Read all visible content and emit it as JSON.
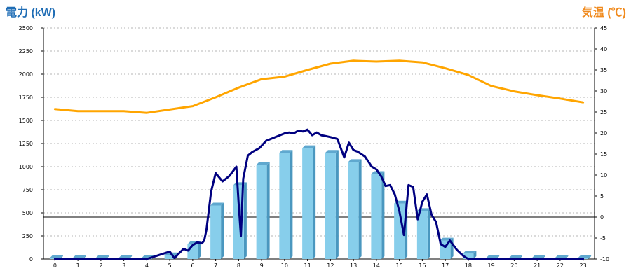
{
  "chart_data": {
    "type": "bar",
    "title": "",
    "left_axis_label": "電力 (kW)",
    "right_axis_label": "気温 (℃)",
    "categories": [
      "0",
      "1",
      "2",
      "3",
      "4",
      "5",
      "6",
      "7",
      "8",
      "9",
      "10",
      "11",
      "12",
      "13",
      "14",
      "15",
      "16",
      "17",
      "18",
      "19",
      "20",
      "21",
      "22",
      "23"
    ],
    "ylim_left": [
      0,
      2500
    ],
    "yticks_left": [
      "0",
      "250",
      "500",
      "750",
      "1000",
      "1250",
      "1500",
      "1750",
      "2000",
      "2250",
      "2500"
    ],
    "ylim_right": [
      -10,
      45
    ],
    "yticks_right": [
      "-10",
      "-5",
      "0",
      "5",
      "10",
      "15",
      "20",
      "25",
      "30",
      "35",
      "40",
      "45"
    ],
    "grid": "horizontal dashed",
    "series": [
      {
        "type": "bar",
        "axis": "left",
        "values": [
          10,
          10,
          10,
          10,
          10,
          40,
          160,
          580,
          800,
          1020,
          1150,
          1200,
          1150,
          1050,
          920,
          600,
          520,
          200,
          60,
          10,
          10,
          10,
          10,
          10
        ],
        "color": "#87ceeb"
      },
      {
        "type": "line",
        "axis": "left",
        "x": [
          0,
          1,
          2,
          3,
          4,
          4.5,
          5,
          5.2,
          5.4,
          5.6,
          5.8,
          6,
          6.2,
          6.4,
          6.5,
          6.6,
          6.8,
          7,
          7.3,
          7.6,
          7.9,
          8,
          8.1,
          8.2,
          8.4,
          8.6,
          8.9,
          9.2,
          9.5,
          9.8,
          10,
          10.2,
          10.4,
          10.6,
          10.8,
          11,
          11.2,
          11.4,
          11.6,
          11.8,
          12,
          12.3,
          12.6,
          12.8,
          13,
          13.2,
          13.5,
          13.8,
          14,
          14.2,
          14.4,
          14.6,
          14.8,
          15,
          15.2,
          15.4,
          15.6,
          15.8,
          16,
          16.2,
          16.4,
          16.6,
          16.8,
          17,
          17.2,
          17.5,
          17.8,
          18,
          19,
          20,
          21,
          22,
          23
        ],
        "y": [
          0,
          0,
          0,
          0,
          0,
          40,
          80,
          10,
          60,
          110,
          90,
          150,
          180,
          170,
          200,
          320,
          730,
          930,
          840,
          900,
          1000,
          600,
          250,
          870,
          1120,
          1160,
          1200,
          1280,
          1310,
          1340,
          1360,
          1370,
          1360,
          1390,
          1380,
          1400,
          1340,
          1370,
          1340,
          1330,
          1320,
          1300,
          1100,
          1260,
          1180,
          1160,
          1110,
          1000,
          970,
          900,
          790,
          800,
          700,
          520,
          260,
          800,
          780,
          430,
          620,
          700,
          480,
          400,
          160,
          130,
          200,
          100,
          30,
          0,
          0,
          0,
          0,
          0,
          0
        ],
        "color": "#000080"
      },
      {
        "type": "line",
        "axis": "right",
        "x": [
          0,
          1,
          2,
          3,
          4,
          5,
          6,
          7,
          8,
          9,
          10,
          11,
          12,
          13,
          14,
          15,
          16,
          17,
          18,
          19,
          20,
          21,
          22,
          23
        ],
        "y": [
          25.7,
          25.2,
          25.2,
          25.2,
          24.8,
          25.6,
          26.4,
          28.5,
          30.8,
          32.8,
          33.4,
          35,
          36.5,
          37.2,
          37,
          37.2,
          36.8,
          35.4,
          33.8,
          31.2,
          29.9,
          29,
          28.2,
          27.3
        ],
        "color": "#ffa500"
      }
    ]
  }
}
